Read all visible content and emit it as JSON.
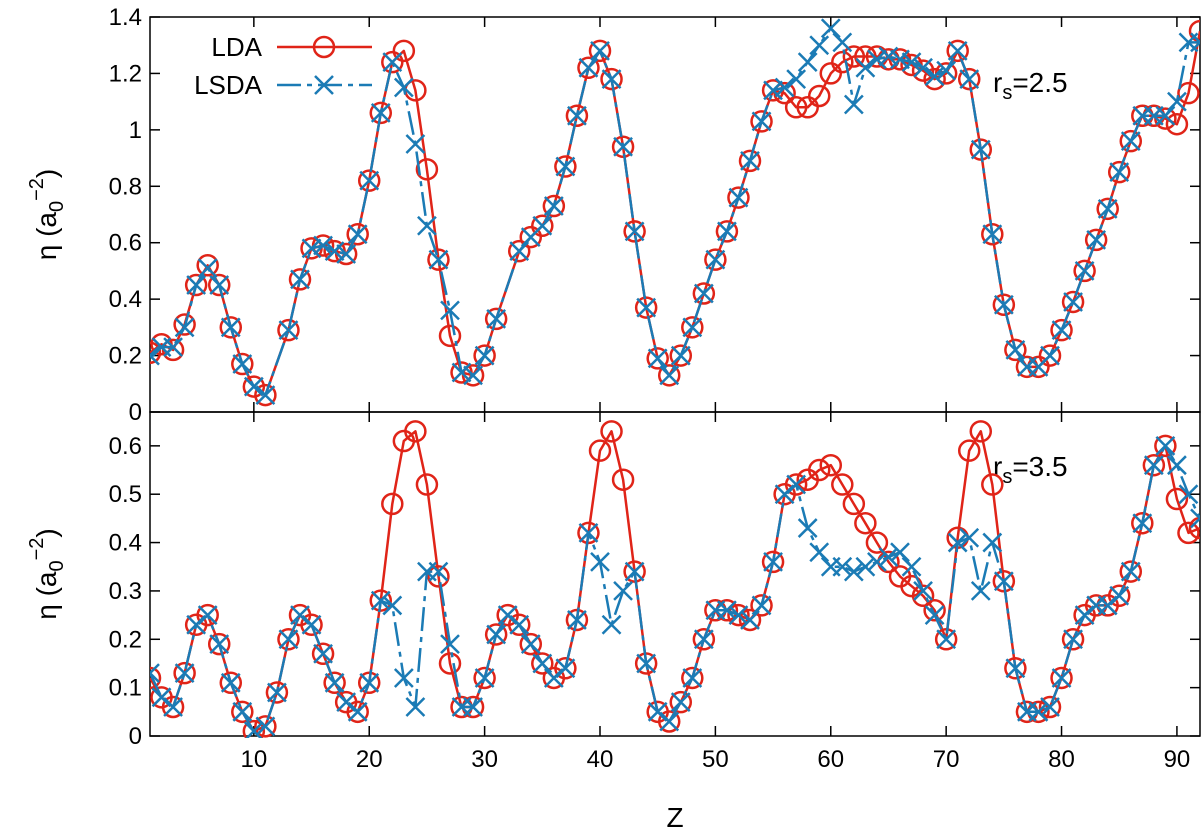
{
  "colors": {
    "lda": "#e02418",
    "lsda": "#1b7bb5"
  },
  "chart_data": [
    {
      "type": "line",
      "ylabel": "η (a0−2)",
      "xlim": [
        1,
        92
      ],
      "ylim": [
        0,
        1.4
      ],
      "yticks": [
        0,
        0.2,
        0.4,
        0.6,
        0.8,
        1,
        1.2,
        1.4
      ],
      "ytick_labels": [
        "0",
        "0.2",
        "0.4",
        "0.6",
        "0.8",
        "1",
        "1.2",
        "1.4"
      ],
      "annotation": {
        "base": "r",
        "sub": "s",
        "rest": "=2.5"
      },
      "legend": {
        "position": "top-left",
        "entries": [
          "LDA",
          "LSDA"
        ]
      },
      "series": [
        {
          "name": "LDA",
          "x": [
            1,
            2,
            3,
            4,
            5,
            6,
            7,
            8,
            9,
            10,
            11,
            13,
            14,
            15,
            16,
            17,
            18,
            19,
            20,
            21,
            22,
            23,
            24,
            25,
            26,
            27,
            28,
            29,
            30,
            31,
            33,
            34,
            35,
            36,
            37,
            38,
            39,
            40,
            41,
            42,
            43,
            44,
            45,
            46,
            47,
            48,
            49,
            50,
            51,
            52,
            53,
            54,
            55,
            56,
            57,
            58,
            59,
            60,
            61,
            62,
            63,
            64,
            65,
            66,
            67,
            68,
            69,
            70,
            71,
            72,
            73,
            74,
            75,
            76,
            77,
            78,
            79,
            80,
            81,
            82,
            83,
            84,
            85,
            86,
            87,
            88,
            89,
            90,
            91,
            92
          ],
          "values": [
            0.21,
            0.24,
            0.22,
            0.31,
            0.45,
            0.52,
            0.45,
            0.3,
            0.17,
            0.09,
            0.06,
            0.29,
            0.47,
            0.58,
            0.59,
            0.57,
            0.56,
            0.63,
            0.82,
            1.06,
            1.24,
            1.28,
            1.14,
            0.86,
            0.54,
            0.27,
            0.14,
            0.13,
            0.2,
            0.33,
            0.57,
            0.62,
            0.66,
            0.73,
            0.87,
            1.05,
            1.22,
            1.28,
            1.18,
            0.94,
            0.64,
            0.37,
            0.19,
            0.13,
            0.2,
            0.3,
            0.42,
            0.54,
            0.64,
            0.76,
            0.89,
            1.03,
            1.14,
            1.13,
            1.08,
            1.08,
            1.12,
            1.2,
            1.24,
            1.26,
            1.26,
            1.26,
            1.25,
            1.25,
            1.23,
            1.21,
            1.18,
            1.2,
            1.28,
            1.18,
            0.93,
            0.63,
            0.38,
            0.22,
            0.16,
            0.16,
            0.2,
            0.29,
            0.39,
            0.5,
            0.61,
            0.72,
            0.85,
            0.96,
            1.05,
            1.05,
            1.04,
            1.02,
            1.13,
            1.35
          ]
        },
        {
          "name": "LSDA",
          "x": [
            1,
            2,
            3,
            4,
            5,
            6,
            7,
            8,
            9,
            10,
            11,
            13,
            14,
            15,
            16,
            17,
            18,
            19,
            20,
            21,
            22,
            23,
            24,
            25,
            26,
            27,
            28,
            29,
            30,
            31,
            33,
            34,
            35,
            36,
            37,
            38,
            39,
            40,
            41,
            42,
            43,
            44,
            45,
            46,
            47,
            48,
            49,
            50,
            51,
            52,
            53,
            54,
            55,
            56,
            57,
            58,
            59,
            60,
            61,
            62,
            63,
            64,
            65,
            66,
            67,
            68,
            69,
            70,
            71,
            72,
            73,
            74,
            75,
            76,
            77,
            78,
            79,
            80,
            81,
            82,
            83,
            84,
            85,
            86,
            87,
            88,
            89,
            90,
            91,
            92
          ],
          "values": [
            0.2,
            0.23,
            0.23,
            0.3,
            0.45,
            0.51,
            0.45,
            0.3,
            0.17,
            0.09,
            0.06,
            0.29,
            0.47,
            0.58,
            0.59,
            0.57,
            0.56,
            0.63,
            0.82,
            1.06,
            1.24,
            1.15,
            0.95,
            0.66,
            0.54,
            0.36,
            0.14,
            0.13,
            0.2,
            0.33,
            0.57,
            0.62,
            0.66,
            0.73,
            0.87,
            1.05,
            1.22,
            1.28,
            1.18,
            0.94,
            0.64,
            0.37,
            0.19,
            0.13,
            0.2,
            0.3,
            0.42,
            0.54,
            0.64,
            0.76,
            0.89,
            1.03,
            1.14,
            1.15,
            1.18,
            1.24,
            1.3,
            1.36,
            1.31,
            1.09,
            1.22,
            1.25,
            1.26,
            1.25,
            1.24,
            1.22,
            1.19,
            1.21,
            1.28,
            1.18,
            0.93,
            0.63,
            0.38,
            0.22,
            0.16,
            0.16,
            0.2,
            0.29,
            0.39,
            0.5,
            0.61,
            0.72,
            0.85,
            0.96,
            1.05,
            1.05,
            1.05,
            1.1,
            1.31,
            1.31
          ]
        }
      ]
    },
    {
      "type": "line",
      "xlabel": "Z",
      "ylabel": "η (a0−2)",
      "xlim": [
        1,
        92
      ],
      "ylim": [
        0,
        0.67
      ],
      "xticks": [
        10,
        20,
        30,
        40,
        50,
        60,
        70,
        80,
        90
      ],
      "xtick_labels": [
        "10",
        "20",
        "30",
        "40",
        "50",
        "60",
        "70",
        "80",
        "90"
      ],
      "yticks": [
        0,
        0.1,
        0.2,
        0.3,
        0.4,
        0.5,
        0.6
      ],
      "ytick_labels": [
        "0",
        "0.1",
        "0.2",
        "0.3",
        "0.4",
        "0.5",
        "0.6"
      ],
      "annotation": {
        "base": "r",
        "sub": "s",
        "rest": "=3.5"
      },
      "series": [
        {
          "name": "LDA",
          "x": [
            1,
            2,
            3,
            4,
            5,
            6,
            7,
            8,
            9,
            10,
            11,
            12,
            13,
            14,
            15,
            16,
            17,
            18,
            19,
            20,
            21,
            22,
            23,
            24,
            25,
            26,
            27,
            28,
            29,
            30,
            31,
            32,
            33,
            34,
            35,
            36,
            37,
            38,
            39,
            40,
            41,
            42,
            43,
            44,
            45,
            46,
            47,
            48,
            49,
            50,
            51,
            52,
            53,
            54,
            55,
            56,
            57,
            58,
            59,
            60,
            61,
            62,
            63,
            64,
            65,
            66,
            67,
            68,
            69,
            70,
            71,
            72,
            73,
            74,
            75,
            76,
            77,
            78,
            79,
            80,
            81,
            82,
            83,
            84,
            85,
            86,
            87,
            88,
            89,
            90,
            91,
            92
          ],
          "values": [
            0.12,
            0.08,
            0.06,
            0.13,
            0.23,
            0.25,
            0.19,
            0.11,
            0.05,
            0.01,
            0.02,
            0.09,
            0.2,
            0.25,
            0.23,
            0.17,
            0.11,
            0.07,
            0.05,
            0.11,
            0.28,
            0.48,
            0.61,
            0.63,
            0.52,
            0.33,
            0.15,
            0.06,
            0.06,
            0.12,
            0.21,
            0.25,
            0.23,
            0.19,
            0.15,
            0.12,
            0.14,
            0.24,
            0.42,
            0.59,
            0.63,
            0.53,
            0.34,
            0.15,
            0.05,
            0.03,
            0.07,
            0.12,
            0.2,
            0.26,
            0.26,
            0.25,
            0.24,
            0.27,
            0.36,
            0.5,
            0.52,
            0.53,
            0.55,
            0.56,
            0.52,
            0.48,
            0.44,
            0.4,
            0.36,
            0.33,
            0.31,
            0.29,
            0.26,
            0.2,
            0.41,
            0.59,
            0.63,
            0.52,
            0.32,
            0.14,
            0.05,
            0.05,
            0.06,
            0.12,
            0.2,
            0.25,
            0.27,
            0.27,
            0.29,
            0.34,
            0.44,
            0.56,
            0.6,
            0.49,
            0.42,
            0.43
          ]
        },
        {
          "name": "LSDA",
          "x": [
            1,
            2,
            3,
            4,
            5,
            6,
            7,
            8,
            9,
            10,
            11,
            12,
            13,
            14,
            15,
            16,
            17,
            18,
            19,
            20,
            21,
            22,
            23,
            24,
            25,
            26,
            27,
            28,
            29,
            30,
            31,
            32,
            33,
            34,
            35,
            36,
            37,
            38,
            39,
            40,
            41,
            42,
            43,
            44,
            45,
            46,
            47,
            48,
            49,
            50,
            51,
            52,
            53,
            54,
            55,
            56,
            57,
            58,
            59,
            60,
            61,
            62,
            63,
            64,
            65,
            66,
            67,
            68,
            69,
            70,
            71,
            72,
            73,
            74,
            75,
            76,
            77,
            78,
            79,
            80,
            81,
            82,
            83,
            84,
            85,
            86,
            87,
            88,
            89,
            90,
            91,
            92
          ],
          "values": [
            0.13,
            0.08,
            0.06,
            0.13,
            0.23,
            0.25,
            0.19,
            0.11,
            0.05,
            0.01,
            0.02,
            0.09,
            0.2,
            0.25,
            0.23,
            0.17,
            0.11,
            0.07,
            0.05,
            0.11,
            0.28,
            0.27,
            0.12,
            0.06,
            0.34,
            0.34,
            0.19,
            0.06,
            0.06,
            0.12,
            0.21,
            0.25,
            0.23,
            0.19,
            0.15,
            0.12,
            0.14,
            0.24,
            0.42,
            0.36,
            0.23,
            0.3,
            0.34,
            0.15,
            0.05,
            0.03,
            0.07,
            0.12,
            0.2,
            0.26,
            0.26,
            0.25,
            0.24,
            0.27,
            0.36,
            0.5,
            0.52,
            0.43,
            0.38,
            0.35,
            0.35,
            0.34,
            0.35,
            0.36,
            0.37,
            0.38,
            0.35,
            0.3,
            0.25,
            0.2,
            0.4,
            0.41,
            0.3,
            0.4,
            0.32,
            0.14,
            0.05,
            0.05,
            0.06,
            0.12,
            0.2,
            0.25,
            0.27,
            0.27,
            0.29,
            0.34,
            0.44,
            0.56,
            0.6,
            0.56,
            0.5,
            0.45
          ]
        }
      ]
    }
  ]
}
